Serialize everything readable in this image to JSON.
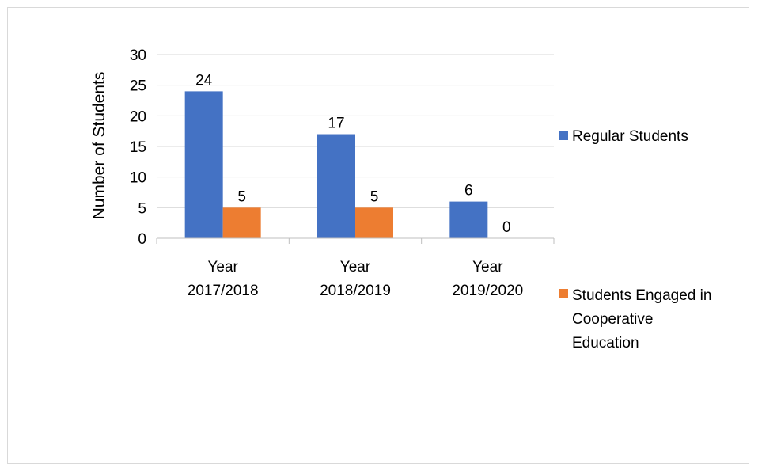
{
  "chart_data": {
    "type": "bar",
    "title": "",
    "xlabel": "",
    "ylabel": "Number of Students",
    "ylim": [
      0,
      30
    ],
    "yticks": [
      0,
      5,
      10,
      15,
      20,
      25,
      30
    ],
    "grid": true,
    "legend_position": "right",
    "categories": [
      [
        "Year",
        "2017/2018"
      ],
      [
        "Year",
        "2018/2019"
      ],
      [
        "Year",
        "2019/2020"
      ]
    ],
    "series": [
      {
        "name": "Regular Students",
        "name_lines": [
          "Regular Students"
        ],
        "color": "#4472c4",
        "values": [
          24,
          17,
          6
        ]
      },
      {
        "name": "Students Engaged in Cooperative Education",
        "name_lines": [
          "Students Engaged in",
          "Cooperative",
          "Education"
        ],
        "color": "#ed7d31",
        "values": [
          5,
          5,
          0
        ]
      }
    ]
  }
}
